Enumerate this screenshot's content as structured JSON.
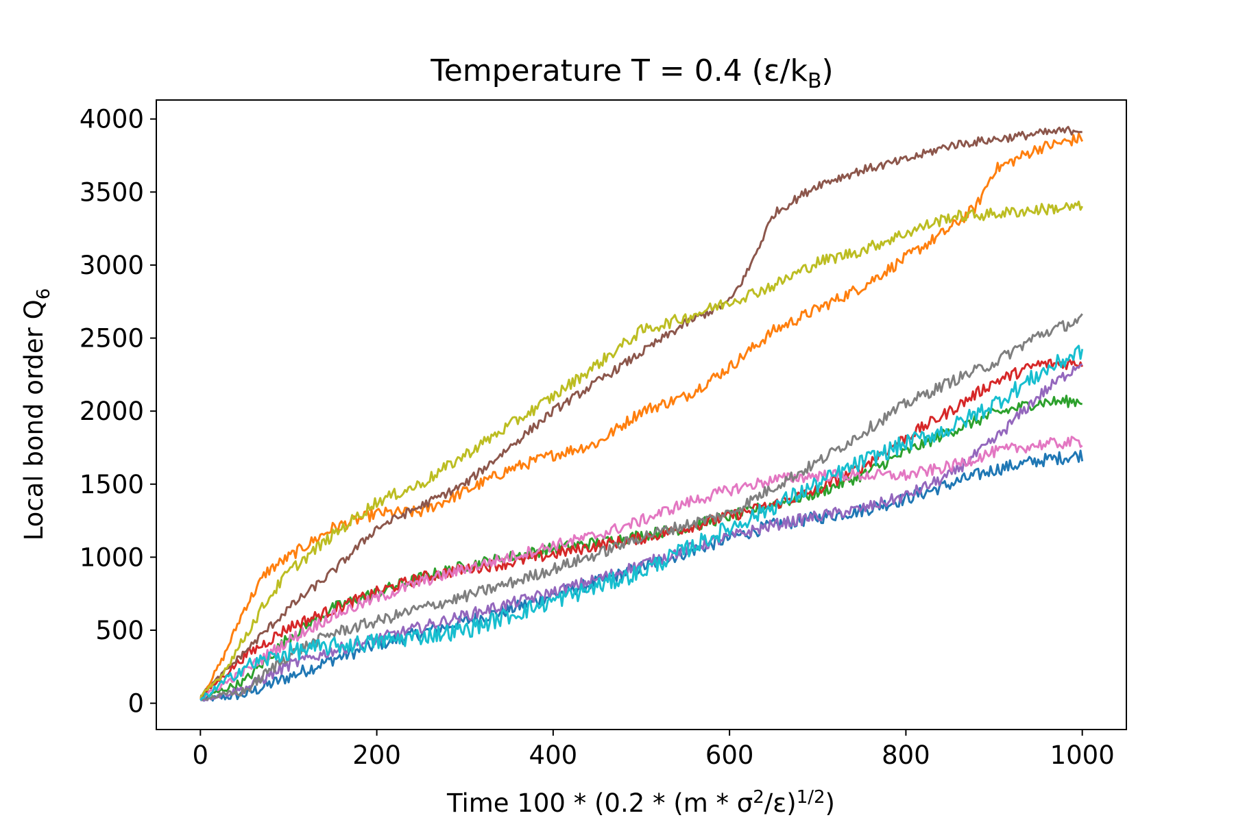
{
  "chart_data": {
    "type": "line",
    "title": "Temperature T = 0.4 (ε/k",
    "title_sub": "B",
    "title_close": ")",
    "xlabel": "Time 100 * (0.2 * (m * σ",
    "xlabel_sup1": "2",
    "xlabel_mid": "/ε)",
    "xlabel_sup2": "1/2",
    "xlabel_close": ")",
    "ylabel": "Local bond order Q",
    "ylabel_sub": "6",
    "xlim": [
      -50,
      1050
    ],
    "ylim": [
      -180,
      4130
    ],
    "x_ticks": [
      0,
      200,
      400,
      600,
      800,
      1000
    ],
    "y_ticks": [
      0,
      500,
      1000,
      1500,
      2000,
      2500,
      3000,
      3500,
      4000
    ],
    "grid": false,
    "legend": "none",
    "series": [
      {
        "color": "#1f77b4",
        "x": [
          0,
          50,
          100,
          150,
          200,
          250,
          300,
          350,
          400,
          450,
          500,
          550,
          600,
          650,
          700,
          750,
          800,
          850,
          900,
          950,
          1000
        ],
        "values": [
          20,
          60,
          180,
          300,
          400,
          480,
          560,
          640,
          740,
          830,
          930,
          1030,
          1130,
          1220,
          1270,
          1320,
          1400,
          1500,
          1600,
          1660,
          1700
        ],
        "noise": 45
      },
      {
        "color": "#ff7f0e",
        "x": [
          0,
          25,
          50,
          75,
          100,
          150,
          200,
          250,
          300,
          350,
          400,
          450,
          500,
          550,
          600,
          650,
          700,
          750,
          800,
          850,
          880,
          900,
          950,
          1000
        ],
        "values": [
          30,
          300,
          650,
          900,
          1000,
          1200,
          1300,
          1310,
          1450,
          1600,
          1700,
          1780,
          2000,
          2100,
          2300,
          2550,
          2700,
          2850,
          3050,
          3250,
          3400,
          3650,
          3800,
          3870
        ],
        "noise": 40
      },
      {
        "color": "#2ca02c",
        "x": [
          0,
          50,
          100,
          150,
          200,
          250,
          300,
          350,
          400,
          450,
          500,
          550,
          600,
          650,
          700,
          750,
          800,
          850,
          900,
          950,
          1000
        ],
        "values": [
          30,
          150,
          450,
          650,
          760,
          860,
          940,
          1000,
          1060,
          1100,
          1150,
          1200,
          1280,
          1360,
          1440,
          1560,
          1720,
          1860,
          1980,
          2060,
          2070
        ],
        "noise": 40
      },
      {
        "color": "#d62728",
        "x": [
          0,
          50,
          100,
          150,
          200,
          250,
          300,
          350,
          400,
          450,
          500,
          550,
          600,
          650,
          700,
          750,
          800,
          850,
          900,
          950,
          1000
        ],
        "values": [
          40,
          320,
          520,
          640,
          760,
          860,
          920,
          960,
          1020,
          1080,
          1130,
          1200,
          1280,
          1360,
          1460,
          1620,
          1820,
          2000,
          2200,
          2320,
          2330
        ],
        "noise": 40
      },
      {
        "color": "#9467bd",
        "x": [
          0,
          50,
          100,
          150,
          200,
          250,
          300,
          350,
          400,
          450,
          500,
          550,
          600,
          650,
          700,
          750,
          800,
          850,
          900,
          950,
          1000
        ],
        "values": [
          20,
          100,
          260,
          360,
          440,
          520,
          600,
          680,
          760,
          850,
          950,
          1050,
          1140,
          1220,
          1280,
          1330,
          1420,
          1560,
          1800,
          2100,
          2340
        ],
        "noise": 40
      },
      {
        "color": "#8c564b",
        "x": [
          0,
          50,
          100,
          150,
          200,
          250,
          300,
          350,
          400,
          450,
          500,
          550,
          600,
          620,
          650,
          700,
          750,
          800,
          850,
          900,
          950,
          1000
        ],
        "values": [
          50,
          350,
          650,
          900,
          1200,
          1350,
          1500,
          1750,
          2000,
          2200,
          2400,
          2600,
          2750,
          2950,
          3350,
          3550,
          3650,
          3720,
          3820,
          3860,
          3900,
          3930
        ],
        "noise": 30
      },
      {
        "color": "#e377c2",
        "x": [
          0,
          50,
          100,
          150,
          200,
          250,
          300,
          350,
          400,
          450,
          500,
          550,
          600,
          650,
          700,
          750,
          800,
          850,
          900,
          950,
          1000
        ],
        "values": [
          30,
          220,
          430,
          600,
          720,
          830,
          920,
          1000,
          1080,
          1150,
          1250,
          1370,
          1460,
          1530,
          1560,
          1560,
          1560,
          1620,
          1720,
          1770,
          1790
        ],
        "noise": 40
      },
      {
        "color": "#7f7f7f",
        "x": [
          0,
          50,
          100,
          150,
          200,
          250,
          300,
          350,
          400,
          450,
          500,
          550,
          600,
          650,
          700,
          750,
          800,
          850,
          900,
          950,
          1000
        ],
        "values": [
          30,
          80,
          330,
          480,
          560,
          650,
          730,
          820,
          920,
          1020,
          1140,
          1220,
          1300,
          1480,
          1650,
          1850,
          2050,
          2200,
          2330,
          2520,
          2630
        ],
        "noise": 40
      },
      {
        "color": "#bcbd22",
        "x": [
          0,
          25,
          50,
          75,
          100,
          150,
          200,
          250,
          300,
          350,
          400,
          450,
          500,
          550,
          600,
          650,
          700,
          750,
          800,
          850,
          900,
          950,
          1000
        ],
        "values": [
          40,
          200,
          450,
          700,
          900,
          1150,
          1380,
          1500,
          1700,
          1900,
          2100,
          2320,
          2550,
          2640,
          2750,
          2860,
          3020,
          3100,
          3220,
          3330,
          3350,
          3380,
          3400
        ],
        "noise": 40
      },
      {
        "color": "#17becf",
        "x": [
          0,
          50,
          100,
          150,
          200,
          250,
          300,
          350,
          400,
          450,
          500,
          550,
          600,
          650,
          700,
          750,
          800,
          850,
          900,
          950,
          1000
        ],
        "values": [
          20,
          250,
          350,
          390,
          420,
          460,
          500,
          600,
          700,
          800,
          900,
          1050,
          1200,
          1350,
          1500,
          1650,
          1780,
          1880,
          2050,
          2250,
          2420
        ],
        "noise": 60
      }
    ]
  }
}
